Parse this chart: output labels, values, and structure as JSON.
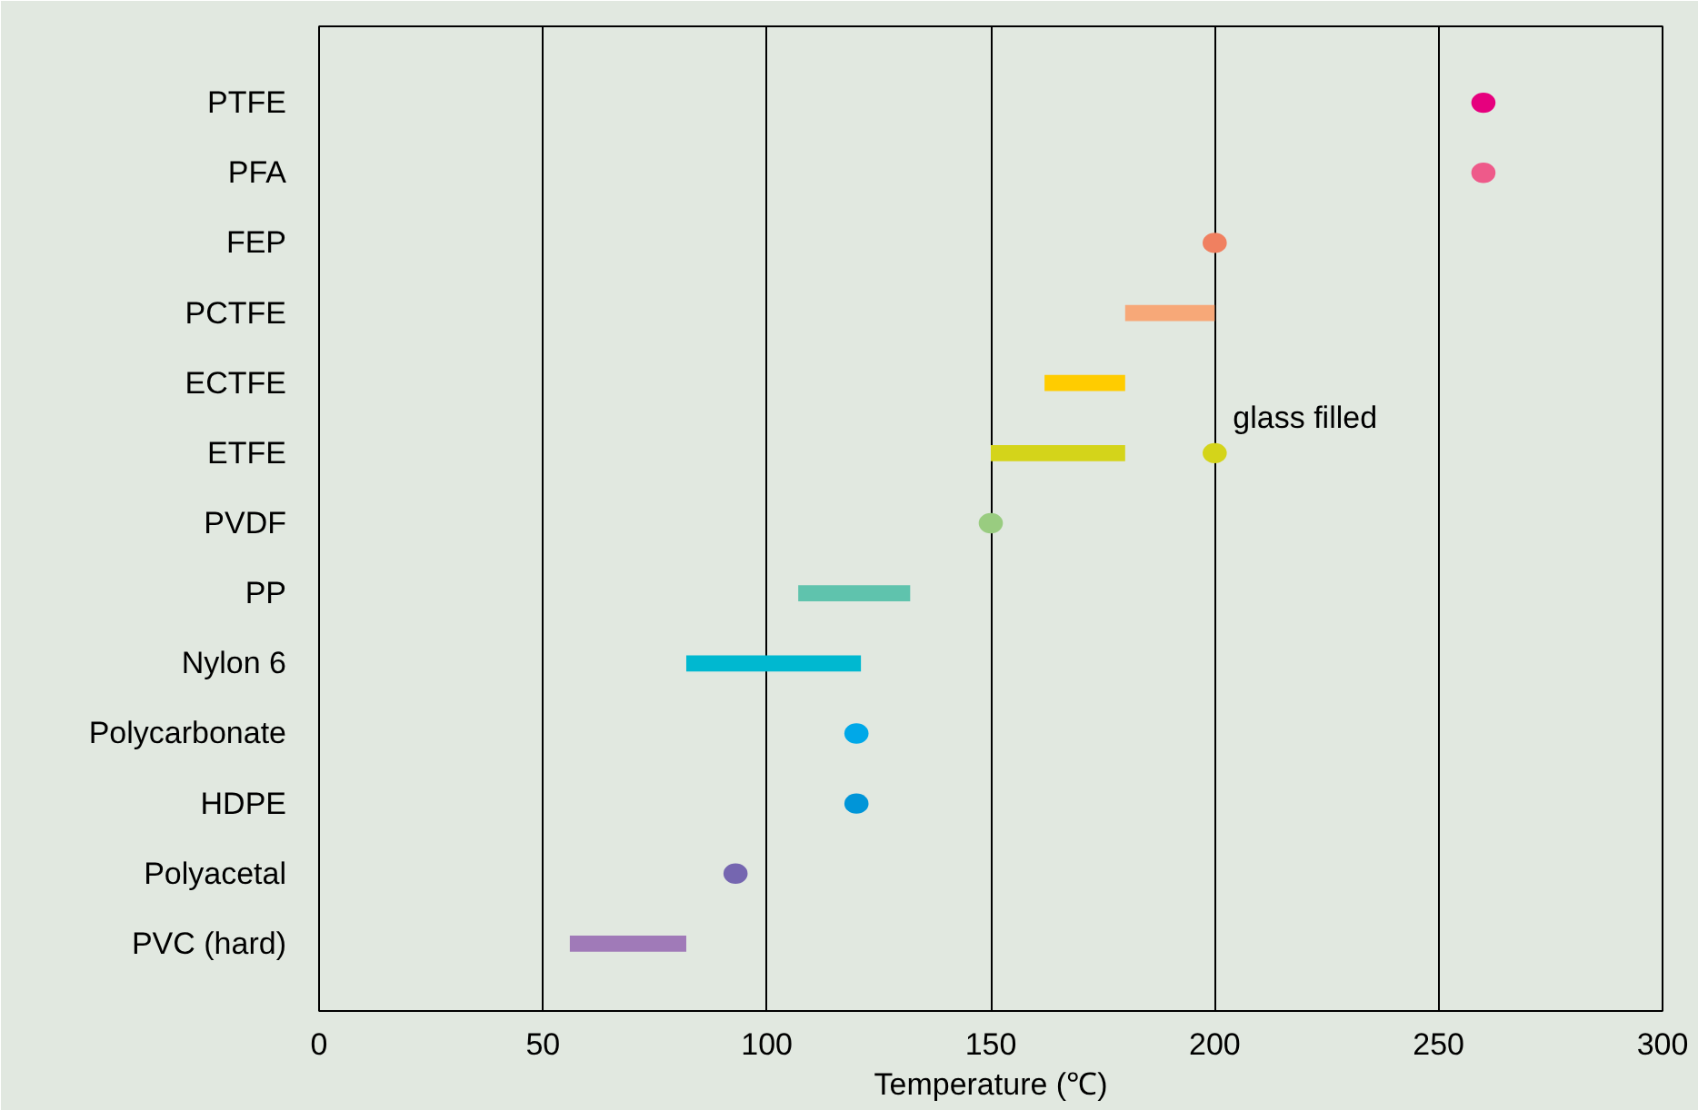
{
  "chart_data": {
    "type": "bar",
    "orientation": "horizontal",
    "categories": [
      "PTFE",
      "PFA",
      "FEP",
      "PCTFE",
      "ECTFE",
      "ETFE",
      "PVDF",
      "PP",
      "Nylon 6",
      "Polycarbonate",
      "HDPE",
      "Polyacetal",
      "PVC (hard)"
    ],
    "xlabel": "Temperature (℃)",
    "xlim": [
      0,
      300
    ],
    "xticks": [
      0,
      50,
      100,
      150,
      200,
      250,
      300
    ],
    "grid": "x",
    "marker": "circle",
    "annotations": [
      {
        "text": "glass filled",
        "x": 200,
        "y": "ETFE"
      }
    ],
    "series": [
      {
        "base": [
          null,
          null,
          null,
          180,
          162,
          150,
          null,
          107,
          82,
          null,
          null,
          null,
          56
        ],
        "values": [
          null,
          null,
          null,
          20,
          18,
          30,
          null,
          25,
          39,
          null,
          null,
          null,
          26
        ],
        "colors": [
          "#e6007e",
          "#ee5a8a",
          "#f08060",
          "#f7a878",
          "#ffcc00",
          "#d4d41a",
          "#99cc80",
          "#5fc3ad",
          "#00b8d0",
          "#00a8e8",
          "#0095d8",
          "#7566b0",
          "#a07ab8"
        ]
      },
      {
        "type": "scatter",
        "values": [
          260,
          260,
          200,
          null,
          null,
          200,
          150,
          null,
          null,
          120,
          120,
          93,
          null
        ],
        "colors": [
          "#e6007e",
          "#ee5a8a",
          "#f08060",
          "#f7a878",
          "#ffcc00",
          "#d4d41a",
          "#99cc80",
          "#5fc3ad",
          "#00b8d0",
          "#00a8e8",
          "#0095d8",
          "#7566b0",
          "#a07ab8"
        ]
      }
    ]
  }
}
